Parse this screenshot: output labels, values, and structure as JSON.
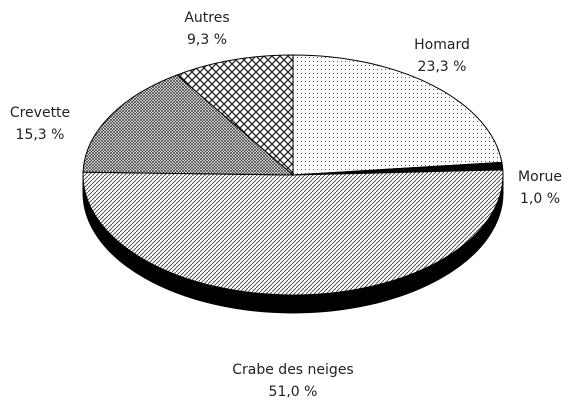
{
  "chart_data": {
    "type": "pie",
    "categories": [
      "Homard",
      "Morue",
      "Crabe des neiges",
      "Crevette",
      "Autres"
    ],
    "values": [
      23.3,
      1.0,
      51.0,
      15.3,
      9.3
    ],
    "value_labels": [
      "23,3 %",
      "1,0 %",
      "51,0 %",
      "15,3 %",
      "9,3 %"
    ]
  }
}
